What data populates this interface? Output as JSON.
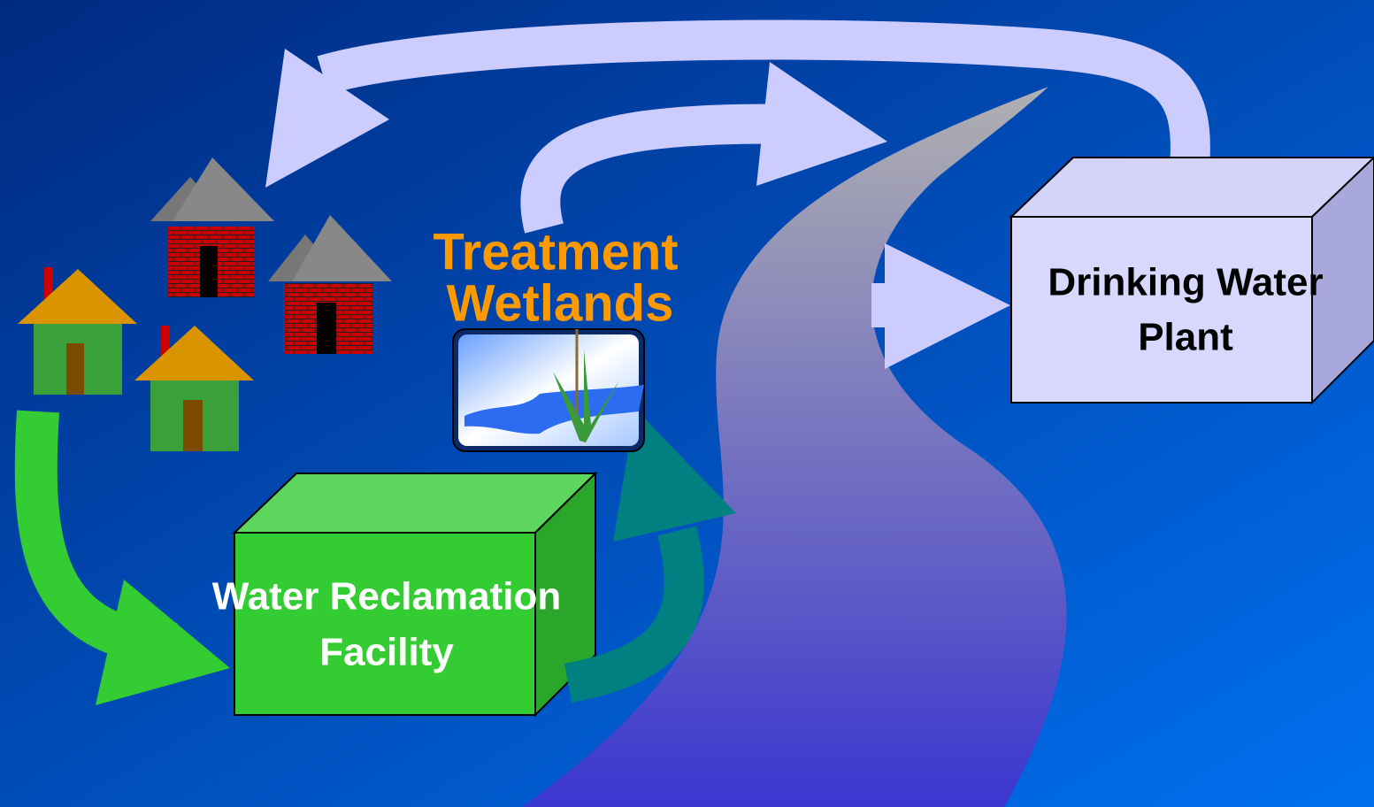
{
  "nodes": [
    {
      "label": [
        "Treatment",
        "Wetlands"
      ]
    },
    {
      "label": [
        "Drinking Water",
        "Plant"
      ]
    },
    {
      "label": [
        "Water Reclamation",
        "Facility"
      ]
    }
  ]
}
